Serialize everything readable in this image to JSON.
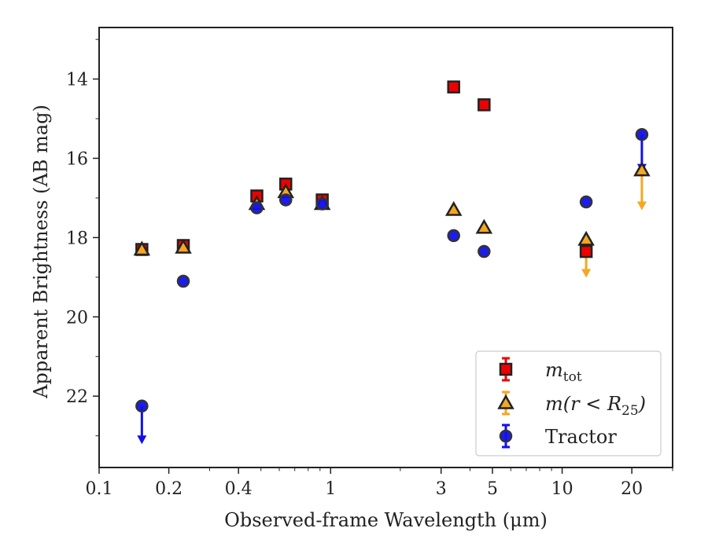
{
  "chart_data": {
    "type": "scatter",
    "xlabel": "Observed-frame Wavelength (μm)",
    "ylabel": "Apparent Brightness (AB mag)",
    "x_scale": "log",
    "xlim": [
      0.1,
      30
    ],
    "ylim": [
      23.8,
      12.7
    ],
    "y_inverted": true,
    "grid": false,
    "legend_position": "bottom-right",
    "xticks": [
      {
        "value": 0.1,
        "label": "0.1"
      },
      {
        "value": 0.2,
        "label": "0.2"
      },
      {
        "value": 0.4,
        "label": "0.4"
      },
      {
        "value": 1,
        "label": "1"
      },
      {
        "value": 3,
        "label": "3"
      },
      {
        "value": 5,
        "label": "5"
      },
      {
        "value": 10,
        "label": "10"
      },
      {
        "value": 20,
        "label": "20"
      }
    ],
    "yticks": [
      {
        "value": 14,
        "label": "14"
      },
      {
        "value": 16,
        "label": "16"
      },
      {
        "value": 18,
        "label": "18"
      },
      {
        "value": 20,
        "label": "20"
      },
      {
        "value": 22,
        "label": "22"
      }
    ],
    "series": [
      {
        "name": "m_tot",
        "legend_main": "m",
        "legend_sub": "tot",
        "marker": "square",
        "color": "#ee0000",
        "edge_color": "#222222",
        "points": [
          {
            "x": 0.153,
            "y": 18.3
          },
          {
            "x": 0.231,
            "y": 18.2
          },
          {
            "x": 0.48,
            "y": 16.95
          },
          {
            "x": 0.64,
            "y": 16.65
          },
          {
            "x": 0.92,
            "y": 17.05
          },
          {
            "x": 3.4,
            "y": 14.2
          },
          {
            "x": 4.6,
            "y": 14.65
          },
          {
            "x": 12.7,
            "y": 18.35
          }
        ]
      },
      {
        "name": "m(r<R25)",
        "legend_main": "m(r < R",
        "legend_sub": "25",
        "legend_end": ")",
        "marker": "triangle",
        "color": "#f5a623",
        "edge_color": "#222222",
        "points": [
          {
            "x": 0.153,
            "y": 18.3
          },
          {
            "x": 0.231,
            "y": 18.25
          },
          {
            "x": 0.48,
            "y": 17.15
          },
          {
            "x": 0.64,
            "y": 16.85
          },
          {
            "x": 0.92,
            "y": 17.15
          },
          {
            "x": 3.4,
            "y": 17.3
          },
          {
            "x": 4.6,
            "y": 17.75
          },
          {
            "x": 12.7,
            "y": 18.05,
            "upper_limit": true,
            "arrow_to": 18.95
          },
          {
            "x": 22.1,
            "y": 16.3,
            "upper_limit": true,
            "arrow_to": 17.25
          }
        ]
      },
      {
        "name": "Tractor",
        "legend_main": "Tractor",
        "marker": "circle",
        "color": "#1010ee",
        "edge_color": "#333333",
        "points": [
          {
            "x": 0.153,
            "y": 22.25,
            "upper_limit": true,
            "arrow_to": 23.15
          },
          {
            "x": 0.231,
            "y": 19.1
          },
          {
            "x": 0.48,
            "y": 17.25
          },
          {
            "x": 0.64,
            "y": 17.05
          },
          {
            "x": 0.92,
            "y": 17.15
          },
          {
            "x": 3.4,
            "y": 17.95
          },
          {
            "x": 4.6,
            "y": 18.35
          },
          {
            "x": 12.7,
            "y": 17.1
          },
          {
            "x": 22.1,
            "y": 15.4,
            "upper_limit": true,
            "arrow_to": 16.3
          }
        ]
      }
    ]
  }
}
